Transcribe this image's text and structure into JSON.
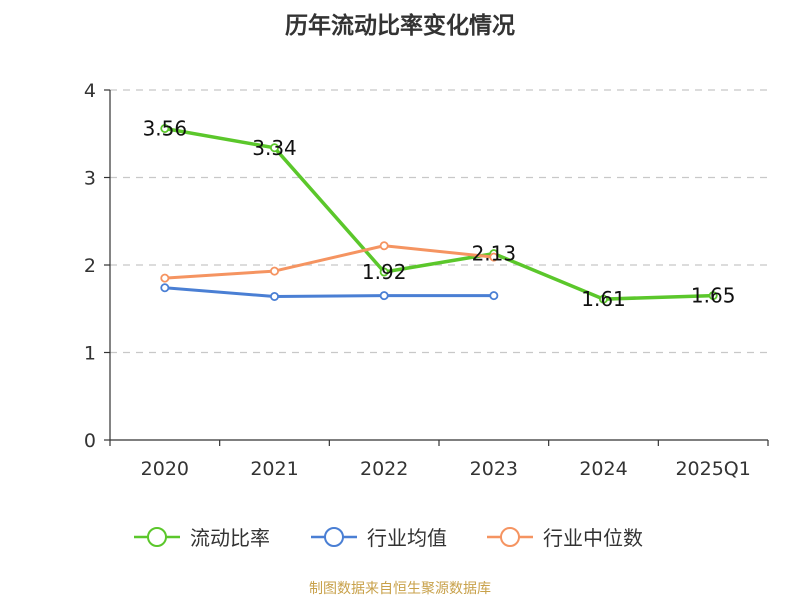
{
  "chart_data": {
    "type": "line",
    "title": "历年流动比率变化情况",
    "categories": [
      "2020",
      "2021",
      "2022",
      "2023",
      "2024",
      "2025Q1"
    ],
    "ylim": [
      0,
      4
    ],
    "yticks": [
      "0",
      "1",
      "2",
      "3",
      "4"
    ],
    "grid": true,
    "legend_position": "bottom",
    "series": [
      {
        "name": "流动比率",
        "color": "#5bc72b",
        "marker": "circle",
        "labels": true,
        "values": [
          3.56,
          3.34,
          1.92,
          2.13,
          1.61,
          1.65
        ],
        "label_text": [
          "3.56",
          "3.34",
          "1.92",
          "2.13",
          "1.61",
          "1.65"
        ]
      },
      {
        "name": "行业均值",
        "color": "#4a7fd4",
        "marker": "circle",
        "labels": false,
        "values": [
          1.74,
          1.64,
          1.65,
          1.65,
          null,
          null
        ]
      },
      {
        "name": "行业中位数",
        "color": "#f59461",
        "marker": "circle",
        "labels": false,
        "values": [
          1.85,
          1.93,
          2.22,
          2.09,
          null,
          null
        ]
      }
    ]
  },
  "footer": {
    "source": "制图数据来自恒生聚源数据库",
    "source_color": "#c8a14a"
  }
}
